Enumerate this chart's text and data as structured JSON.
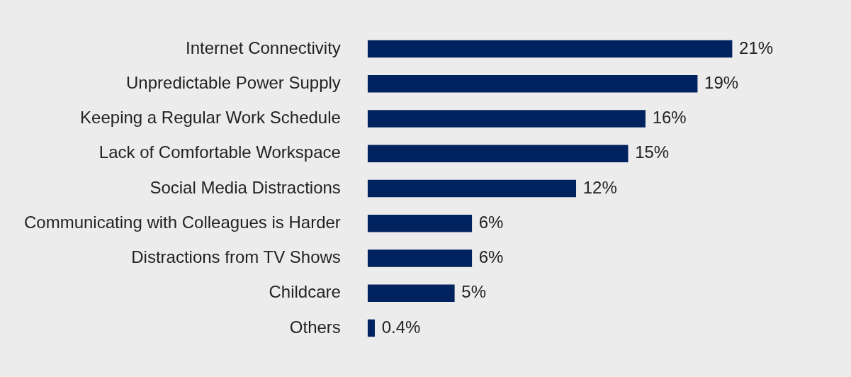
{
  "chart_data": {
    "type": "bar",
    "orientation": "horizontal",
    "categories": [
      "Internet Connectivity",
      "Unpredictable Power Supply",
      "Keeping a Regular Work Schedule",
      "Lack of Comfortable Workspace",
      "Social Media Distractions",
      "Communicating with Colleagues is Harder",
      "Distractions from TV Shows",
      "Childcare",
      "Others"
    ],
    "values": [
      21,
      19,
      16,
      15,
      12,
      6,
      6,
      5,
      0.4
    ],
    "value_labels": [
      "21%",
      "19%",
      "16%",
      "15%",
      "12%",
      "6%",
      "6%",
      "5%",
      "0.4%"
    ],
    "color": "#00235f",
    "tick_labels": "y",
    "grid": false,
    "legend": false
  }
}
